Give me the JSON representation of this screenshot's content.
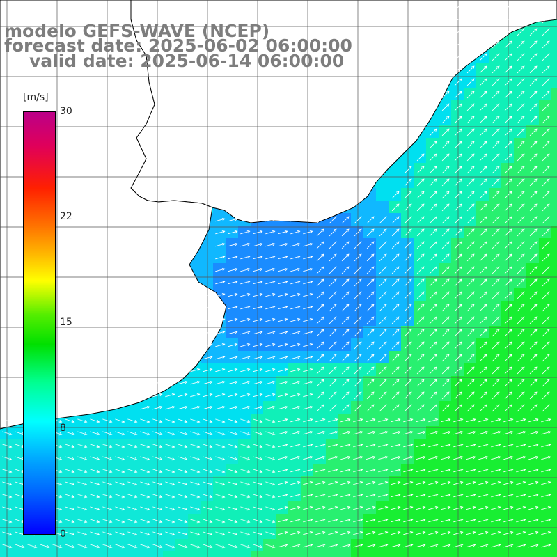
{
  "title": {
    "line1": "modelo GEFS-WAVE (NCEP)",
    "line2": "forecast date: 2025-06-02 06:00:00",
    "line3": "valid date: 2025-06-14 06:00:00"
  },
  "colorbar": {
    "unit": "[m/s]",
    "ticks": [
      {
        "label": "30",
        "value": 30
      },
      {
        "label": "22",
        "value": 22
      },
      {
        "label": "15",
        "value": 15
      },
      {
        "label": "8",
        "value": 8
      },
      {
        "label": "0",
        "value": 0
      }
    ]
  },
  "colors": {
    "land": "#ffffff",
    "coastline": "#000000",
    "grid": "#555555",
    "arrows": "#ffffff",
    "title": "#7d7d7d"
  },
  "map": {
    "variable": "wind speed",
    "vector_field": "wind direction arrows",
    "region": "Rio de la Plata and south-east South America coast"
  }
}
